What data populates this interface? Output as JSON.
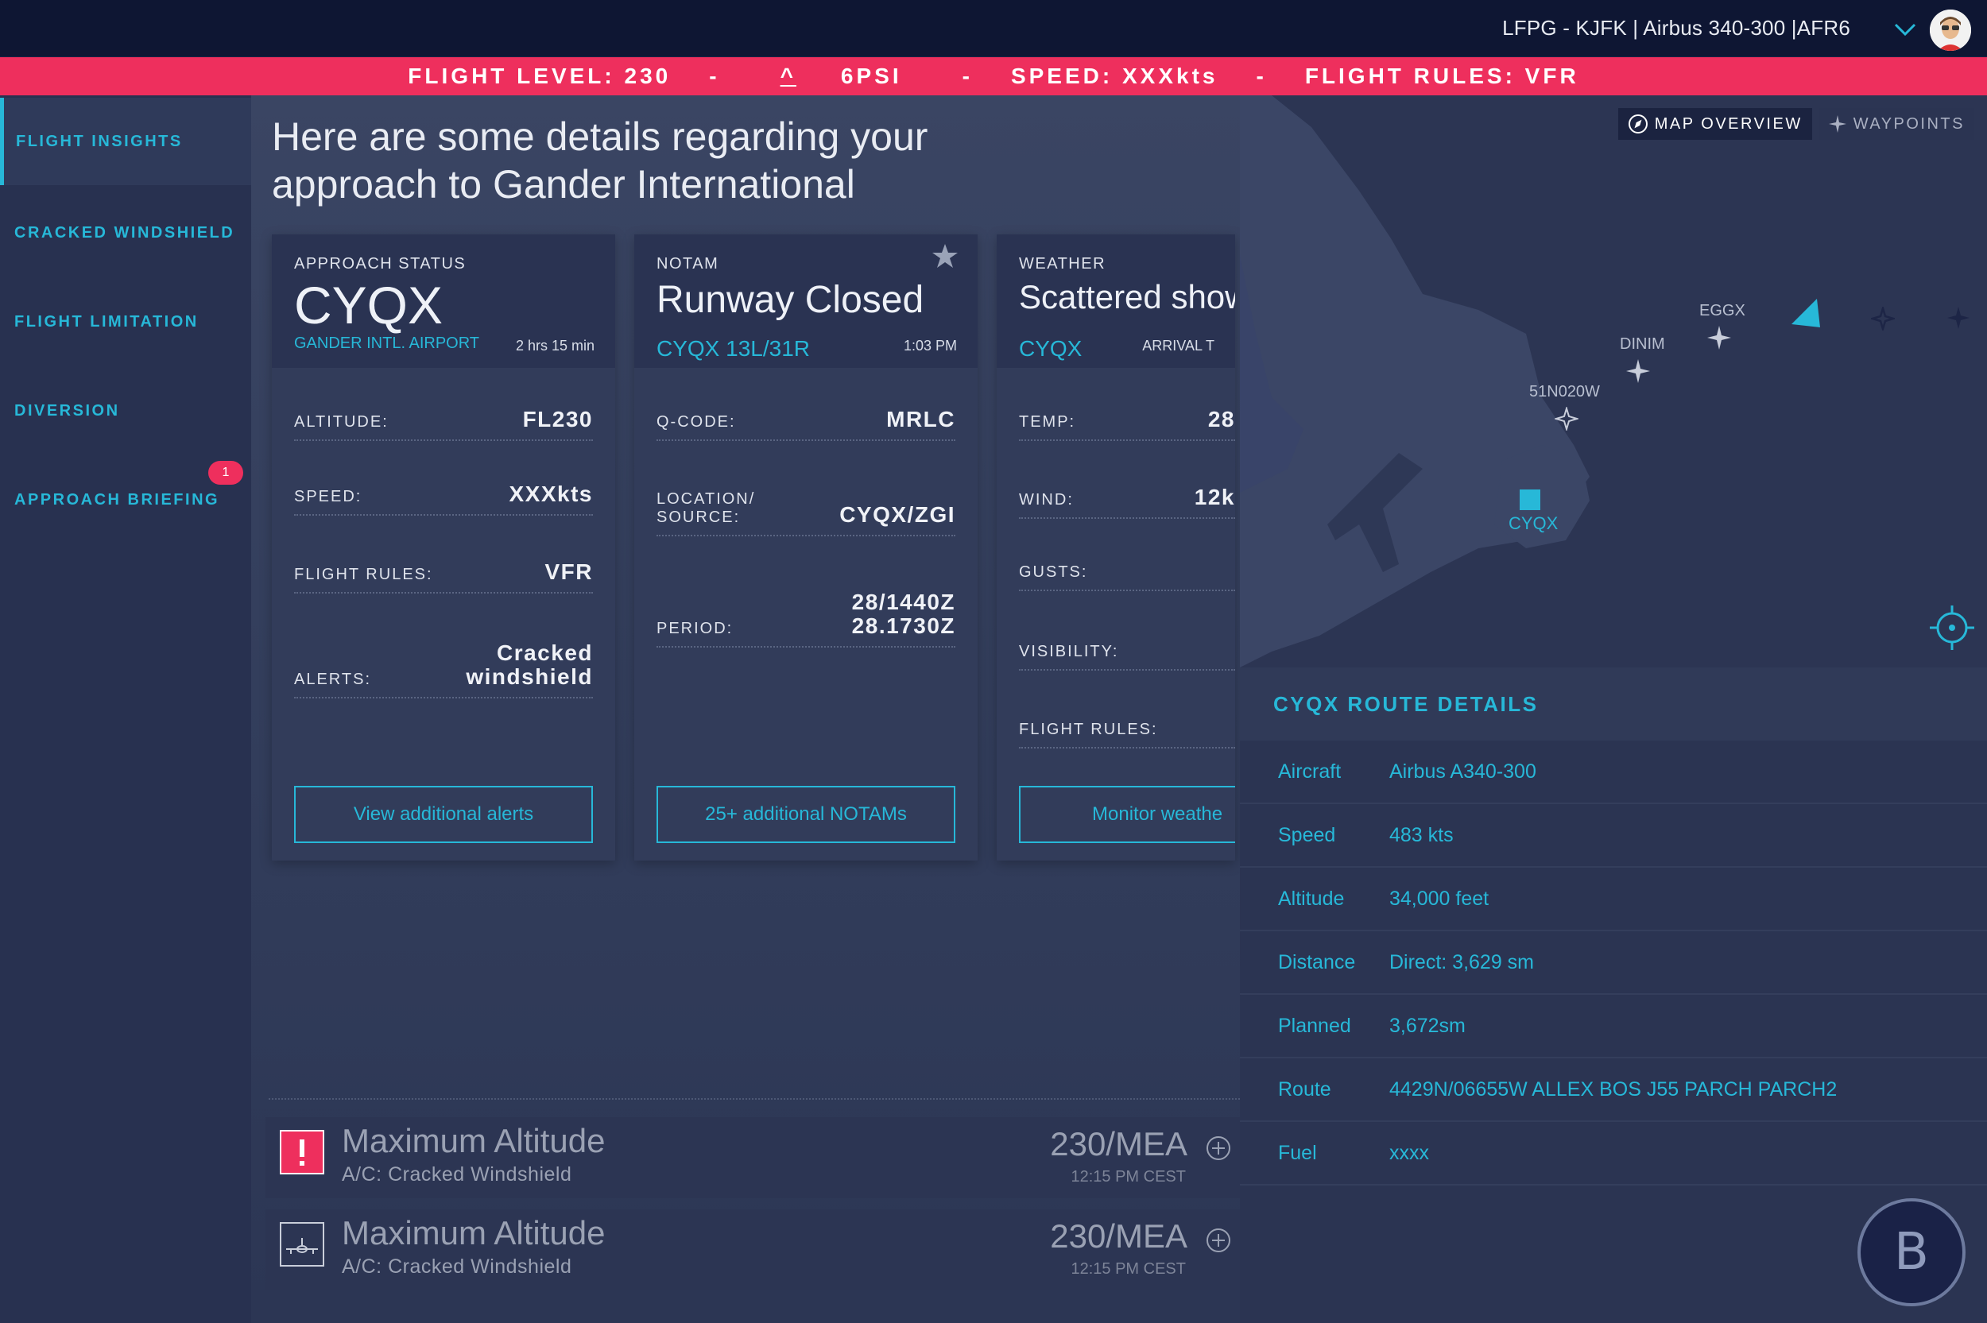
{
  "topbar": {
    "route_title": "LFPG - KJFK | Airbus 340-300 |AFR6"
  },
  "ticker": {
    "flight_level": "FLIGHT LEVEL: 230",
    "psi_caret": "^",
    "psi_value": "6PSI",
    "speed": "SPEED: XXXkts",
    "flight_rules": "FLIGHT RULES: VFR",
    "separator": "-"
  },
  "sidebar": {
    "items": [
      {
        "label": "FLIGHT INSIGHTS"
      },
      {
        "label": "CRACKED WINDSHIELD"
      },
      {
        "label": "FLIGHT LIMITATION"
      },
      {
        "label": "DIVERSION"
      },
      {
        "label": "APPROACH BRIEFING"
      }
    ],
    "badge": "1"
  },
  "main": {
    "headline": "Here are some details regarding your approach to Gander International"
  },
  "cards": {
    "approach": {
      "kicker": "APPROACH STATUS",
      "title": "CYQX",
      "sub": "GANDER INTL. AIRPORT",
      "time": "2 hrs 15 min",
      "rows": [
        {
          "label": "ALTITUDE:",
          "value": "FL230"
        },
        {
          "label": "SPEED:",
          "value": "XXXkts"
        },
        {
          "label": "FLIGHT RULES:",
          "value": "VFR"
        },
        {
          "label": "ALERTS:",
          "value": "Cracked windshield"
        }
      ],
      "button": "View additional alerts"
    },
    "notam": {
      "kicker": "NOTAM",
      "title": "Runway Closed",
      "sub": "CYQX 13L/31R",
      "time": "1:03 PM",
      "rows": [
        {
          "label": "Q-CODE:",
          "value": "MRLC"
        },
        {
          "label": "LOCATION/ SOURCE:",
          "value": "CYQX/ZGI"
        },
        {
          "label": "PERIOD:",
          "value_line1": "28/1440Z",
          "value_line2": "28.1730Z"
        }
      ],
      "button": "25+ additional NOTAMs"
    },
    "weather": {
      "kicker": "WEATHER",
      "title": "Scattered show",
      "sub": "CYQX",
      "time": "ARRIVAL T",
      "rows": [
        {
          "label": "TEMP:",
          "value": "28"
        },
        {
          "label": "WIND:",
          "value": "12k"
        },
        {
          "label": "GUSTS:",
          "value": ""
        },
        {
          "label": "VISIBILITY:",
          "value": ""
        },
        {
          "label": "FLIGHT RULES:",
          "value": ""
        }
      ],
      "button": "Monitor weathe"
    }
  },
  "alerts": [
    {
      "title": "Maximum Altitude",
      "sub": "A/C: Cracked Windshield",
      "value": "230/MEA",
      "time": "12:15 PM CEST",
      "icon": "exclamation-icon"
    },
    {
      "title": "Maximum Altitude",
      "sub": "A/C: Cracked Windshield",
      "value": "230/MEA",
      "time": "12:15 PM CEST",
      "icon": "aircraft-icon"
    }
  ],
  "map": {
    "tab_overview": "MAP OVERVIEW",
    "tab_waypoints": "WAYPOINTS",
    "waypoints": [
      "EGGX",
      "DINIM",
      "51N020W"
    ],
    "airport": "CYQX"
  },
  "route_details": {
    "title": "CYQX ROUTE DETAILS",
    "rows": [
      {
        "key": "Aircraft",
        "value": "Airbus A340-300"
      },
      {
        "key": "Speed",
        "value": "483 kts"
      },
      {
        "key": "Altitude",
        "value": "34,000 feet"
      },
      {
        "key": "Distance",
        "value": "Direct: 3,629 sm"
      },
      {
        "key": "Planned",
        "value": "3,672sm"
      },
      {
        "key": "Route",
        "value": "4429N/06655W ALLEX BOS J55 PARCH PARCH2"
      },
      {
        "key": "Fuel",
        "value": "xxxx"
      }
    ]
  },
  "assistant_glyph": "B",
  "colors": {
    "accent": "#27b8d8",
    "alert": "#ee2f5d",
    "background": "#2a3350",
    "topbar": "#0e1633"
  }
}
